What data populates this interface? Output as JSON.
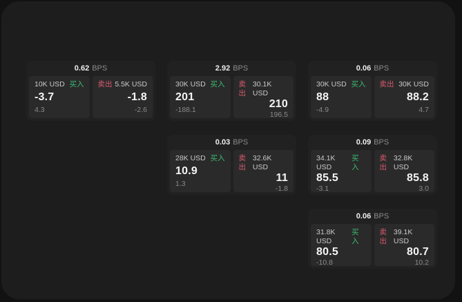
{
  "labels": {
    "bps_unit": "BPS",
    "buy": "买入",
    "sell": "卖出"
  },
  "colors": {
    "buy": "#3cba72",
    "sell": "#d75a6e",
    "window_bg": "#1d1d1d",
    "card_bg": "#212121",
    "panel_bg": "#2a2a2a"
  },
  "cards": [
    {
      "bps": "0.62",
      "grid": {
        "col": 1,
        "row": 1
      },
      "buy": {
        "amount": "10K USD",
        "value": "-3.7",
        "delta": "4.3"
      },
      "sell": {
        "amount": "5.5K USD",
        "value": "-1.8",
        "delta": "-2.6"
      }
    },
    {
      "bps": "2.92",
      "grid": {
        "col": 2,
        "row": 1
      },
      "buy": {
        "amount": "30K USD",
        "value": "201",
        "delta": "-188.1"
      },
      "sell": {
        "amount": "30.1K USD",
        "value": "210",
        "delta": "196.5"
      }
    },
    {
      "bps": "0.06",
      "grid": {
        "col": 3,
        "row": 1
      },
      "buy": {
        "amount": "30K USD",
        "value": "88",
        "delta": "-4.9"
      },
      "sell": {
        "amount": "30K USD",
        "value": "88.2",
        "delta": "4.7"
      }
    },
    {
      "bps": "0.03",
      "grid": {
        "col": 2,
        "row": 2
      },
      "buy": {
        "amount": "28K USD",
        "value": "10.9",
        "delta": "1.3"
      },
      "sell": {
        "amount": "32.6K USD",
        "value": "11",
        "delta": "-1.8"
      }
    },
    {
      "bps": "0.09",
      "grid": {
        "col": 3,
        "row": 2
      },
      "buy": {
        "amount": "34.1K USD",
        "value": "85.5",
        "delta": "-3.1"
      },
      "sell": {
        "amount": "32.8K USD",
        "value": "85.8",
        "delta": "3.0"
      }
    },
    {
      "bps": "0.06",
      "grid": {
        "col": 3,
        "row": 3
      },
      "buy": {
        "amount": "31.8K USD",
        "value": "80.5",
        "delta": "-10.8"
      },
      "sell": {
        "amount": "39.1K USD",
        "value": "80.7",
        "delta": "10.2"
      }
    }
  ]
}
